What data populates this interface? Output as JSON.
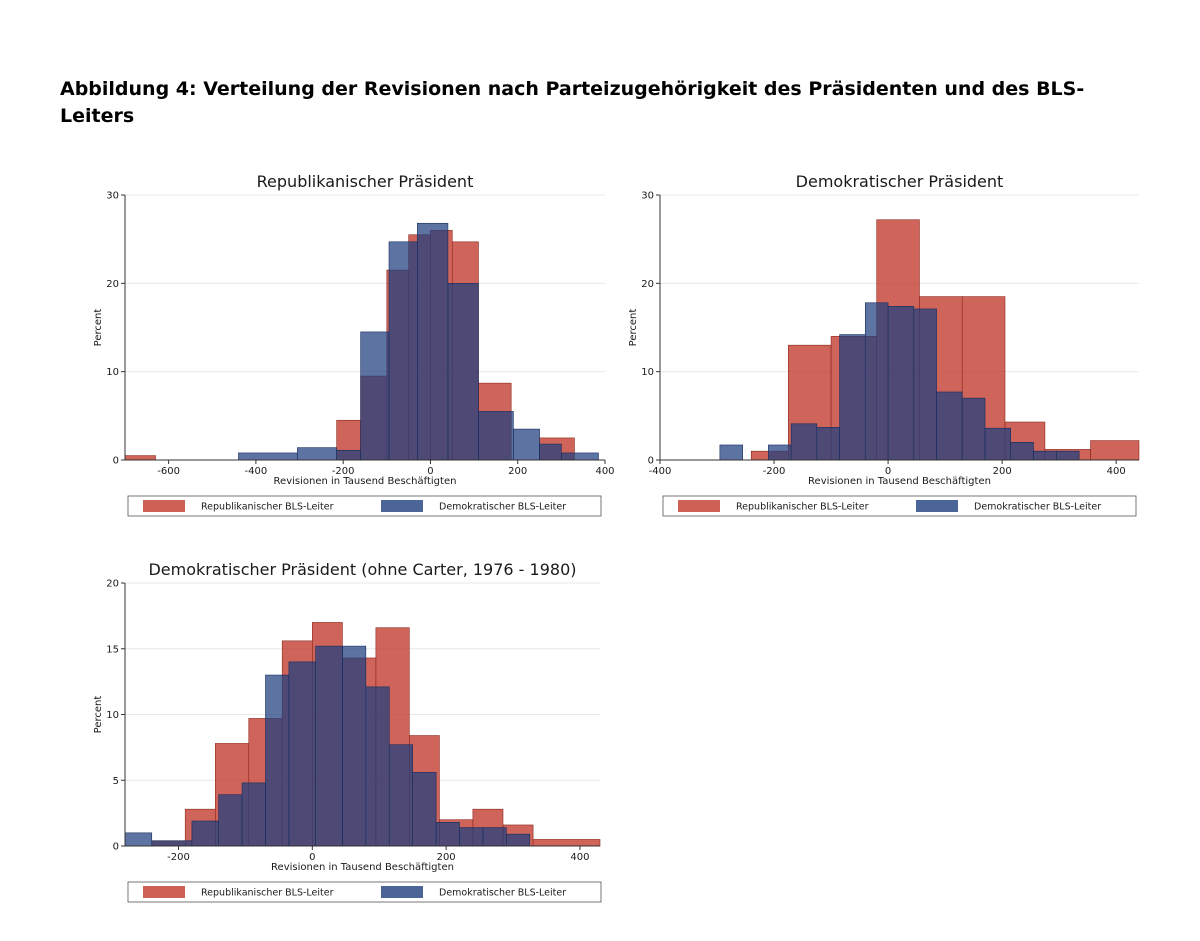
{
  "figure": {
    "title": "Abbildung 4: Verteilung der Revisionen nach Parteizugehörigkeit des Präsidenten und des BLS-Leiters"
  },
  "colors": {
    "republican": "#c0392b",
    "democrat": "#1f3f80",
    "overlap": "#3b3566",
    "grid": "#e8e8e8",
    "axis": "#333333"
  },
  "chart_data": [
    {
      "type": "histogram",
      "title": "Republikanischer Präsident",
      "xlabel": "Revisionen in Tausend Beschäftigten",
      "ylabel": "Percent",
      "xlim": [
        -700,
        400
      ],
      "ylim": [
        0,
        30
      ],
      "xticks": [
        -600,
        -400,
        -200,
        0,
        200,
        400
      ],
      "yticks": [
        0,
        10,
        20,
        30
      ],
      "grid": true,
      "legend_position": "bottom",
      "series": [
        {
          "name": "Republikanischer BLS-Leiter",
          "bins": [
            {
              "x0": -700,
              "x1": -630,
              "y": 0.5
            },
            {
              "x0": -215,
              "x1": -160,
              "y": 4.5
            },
            {
              "x0": -160,
              "x1": -100,
              "y": 9.5
            },
            {
              "x0": -100,
              "x1": -50,
              "y": 21.5
            },
            {
              "x0": -50,
              "x1": 0,
              "y": 25.5
            },
            {
              "x0": 0,
              "x1": 50,
              "y": 26.0
            },
            {
              "x0": 50,
              "x1": 110,
              "y": 24.7
            },
            {
              "x0": 110,
              "x1": 185,
              "y": 8.7
            },
            {
              "x0": 250,
              "x1": 330,
              "y": 2.5
            }
          ]
        },
        {
          "name": "Demokratischer BLS-Leiter",
          "bins": [
            {
              "x0": -440,
              "x1": -305,
              "y": 0.8
            },
            {
              "x0": -305,
              "x1": -215,
              "y": 1.4
            },
            {
              "x0": -215,
              "x1": -160,
              "y": 1.1
            },
            {
              "x0": -160,
              "x1": -95,
              "y": 14.5
            },
            {
              "x0": -95,
              "x1": -30,
              "y": 24.7
            },
            {
              "x0": -30,
              "x1": 40,
              "y": 26.8
            },
            {
              "x0": 40,
              "x1": 110,
              "y": 20.0
            },
            {
              "x0": 110,
              "x1": 190,
              "y": 5.5
            },
            {
              "x0": 190,
              "x1": 250,
              "y": 3.5
            },
            {
              "x0": 250,
              "x1": 300,
              "y": 1.8
            },
            {
              "x0": 300,
              "x1": 385,
              "y": 0.8
            }
          ]
        }
      ]
    },
    {
      "type": "histogram",
      "title": "Demokratischer Präsident",
      "xlabel": "Revisionen in Tausend Beschäftigten",
      "ylabel": "Percent",
      "xlim": [
        -400,
        440
      ],
      "ylim": [
        0,
        30
      ],
      "xticks": [
        -400,
        -200,
        0,
        200,
        400
      ],
      "yticks": [
        0,
        10,
        20,
        30
      ],
      "grid": true,
      "legend_position": "bottom",
      "series": [
        {
          "name": "Republikanischer BLS-Leiter",
          "bins": [
            {
              "x0": -240,
              "x1": -175,
              "y": 1.0
            },
            {
              "x0": -175,
              "x1": -100,
              "y": 13.0
            },
            {
              "x0": -100,
              "x1": -20,
              "y": 14.0
            },
            {
              "x0": -20,
              "x1": 55,
              "y": 27.2
            },
            {
              "x0": 55,
              "x1": 130,
              "y": 18.5
            },
            {
              "x0": 130,
              "x1": 205,
              "y": 18.5
            },
            {
              "x0": 205,
              "x1": 275,
              "y": 4.3
            },
            {
              "x0": 275,
              "x1": 355,
              "y": 1.2
            },
            {
              "x0": 355,
              "x1": 440,
              "y": 2.2
            }
          ]
        },
        {
          "name": "Demokratischer BLS-Leiter",
          "bins": [
            {
              "x0": -295,
              "x1": -255,
              "y": 1.7
            },
            {
              "x0": -210,
              "x1": -170,
              "y": 1.7
            },
            {
              "x0": -170,
              "x1": -125,
              "y": 4.1
            },
            {
              "x0": -125,
              "x1": -85,
              "y": 3.7
            },
            {
              "x0": -85,
              "x1": -40,
              "y": 14.2
            },
            {
              "x0": -40,
              "x1": 0,
              "y": 17.8
            },
            {
              "x0": 0,
              "x1": 45,
              "y": 17.4
            },
            {
              "x0": 45,
              "x1": 85,
              "y": 17.1
            },
            {
              "x0": 85,
              "x1": 130,
              "y": 7.7
            },
            {
              "x0": 130,
              "x1": 170,
              "y": 7.0
            },
            {
              "x0": 170,
              "x1": 215,
              "y": 3.6
            },
            {
              "x0": 215,
              "x1": 255,
              "y": 2.0
            },
            {
              "x0": 255,
              "x1": 295,
              "y": 1.0
            },
            {
              "x0": 295,
              "x1": 335,
              "y": 1.0
            }
          ]
        }
      ]
    },
    {
      "type": "histogram",
      "title": "Demokratischer Präsident (ohne Carter, 1976 - 1980)",
      "xlabel": "Revisionen in Tausend Beschäftigten",
      "ylabel": "Percent",
      "xlim": [
        -280,
        430
      ],
      "ylim": [
        0,
        20
      ],
      "xticks": [
        -200,
        0,
        200,
        400
      ],
      "yticks": [
        0,
        5,
        10,
        15,
        20
      ],
      "grid": true,
      "legend_position": "bottom",
      "series": [
        {
          "name": "Republikanischer BLS-Leiter",
          "bins": [
            {
              "x0": -240,
              "x1": -190,
              "y": 0.4
            },
            {
              "x0": -190,
              "x1": -145,
              "y": 2.8
            },
            {
              "x0": -145,
              "x1": -95,
              "y": 7.8
            },
            {
              "x0": -95,
              "x1": -45,
              "y": 9.7
            },
            {
              "x0": -45,
              "x1": 0,
              "y": 15.6
            },
            {
              "x0": 0,
              "x1": 45,
              "y": 17.0
            },
            {
              "x0": 45,
              "x1": 95,
              "y": 14.3
            },
            {
              "x0": 95,
              "x1": 145,
              "y": 16.6
            },
            {
              "x0": 145,
              "x1": 190,
              "y": 8.4
            },
            {
              "x0": 190,
              "x1": 240,
              "y": 2.0
            },
            {
              "x0": 240,
              "x1": 285,
              "y": 2.8
            },
            {
              "x0": 285,
              "x1": 330,
              "y": 1.6
            },
            {
              "x0": 330,
              "x1": 430,
              "y": 0.5
            }
          ]
        },
        {
          "name": "Demokratischer BLS-Leiter",
          "bins": [
            {
              "x0": -280,
              "x1": -240,
              "y": 1.0
            },
            {
              "x0": -240,
              "x1": -180,
              "y": 0.4
            },
            {
              "x0": -180,
              "x1": -140,
              "y": 1.9
            },
            {
              "x0": -140,
              "x1": -105,
              "y": 3.9
            },
            {
              "x0": -105,
              "x1": -70,
              "y": 4.8
            },
            {
              "x0": -70,
              "x1": -35,
              "y": 13.0
            },
            {
              "x0": -35,
              "x1": 5,
              "y": 14.0
            },
            {
              "x0": 5,
              "x1": 45,
              "y": 15.2
            },
            {
              "x0": 45,
              "x1": 80,
              "y": 15.2
            },
            {
              "x0": 80,
              "x1": 115,
              "y": 12.1
            },
            {
              "x0": 115,
              "x1": 150,
              "y": 7.7
            },
            {
              "x0": 150,
              "x1": 185,
              "y": 5.6
            },
            {
              "x0": 185,
              "x1": 220,
              "y": 1.8
            },
            {
              "x0": 220,
              "x1": 255,
              "y": 1.4
            },
            {
              "x0": 255,
              "x1": 290,
              "y": 1.4
            },
            {
              "x0": 290,
              "x1": 325,
              "y": 0.9
            }
          ]
        }
      ]
    }
  ]
}
